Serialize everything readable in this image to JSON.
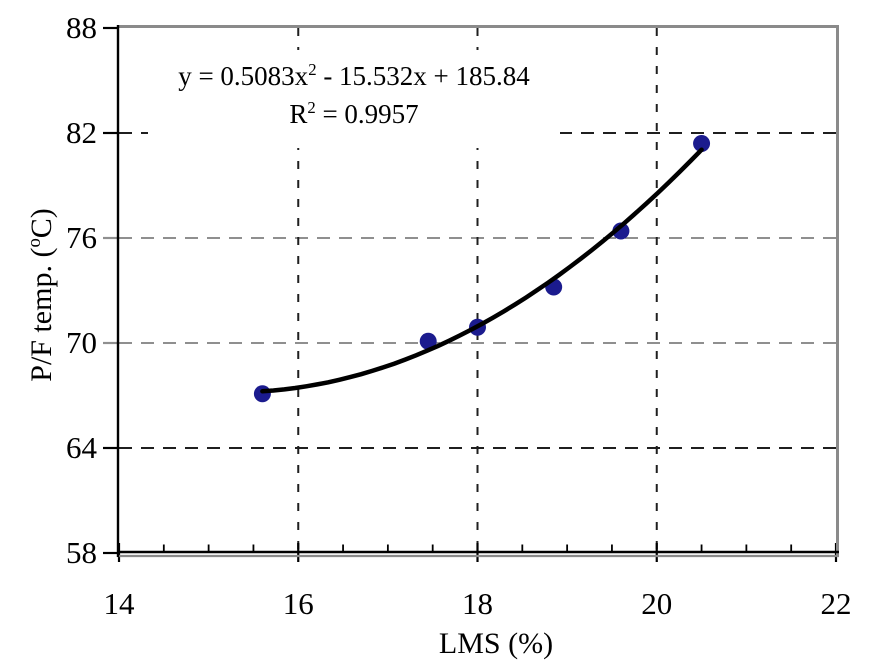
{
  "chart_data": {
    "type": "scatter",
    "title": "",
    "xlabel": "LMS (%)",
    "ylabel": {
      "prefix": "P/F temp. (",
      "degree_sup": "o",
      "suffix": "C)"
    },
    "xlim": [
      14,
      22
    ],
    "ylim": [
      58,
      88
    ],
    "x_major_ticks": [
      14,
      16,
      18,
      20,
      22
    ],
    "x_minor_tick_step": 0.5,
    "y_major_ticks": [
      88,
      82,
      76,
      70,
      64,
      58
    ],
    "legend": "none",
    "series": [
      {
        "name": "pf-temp-vs-lms",
        "marker": "filled-circle",
        "marker_color": "#1b1b8e",
        "points": [
          {
            "x": 15.6,
            "y": 67.1
          },
          {
            "x": 17.45,
            "y": 70.1
          },
          {
            "x": 18.0,
            "y": 70.9
          },
          {
            "x": 18.85,
            "y": 73.2
          },
          {
            "x": 19.6,
            "y": 76.4
          },
          {
            "x": 20.5,
            "y": 81.4
          }
        ]
      }
    ],
    "trendline": {
      "type": "polynomial",
      "order": 2,
      "a": 0.5083,
      "b": -15.532,
      "c": 185.84,
      "x_start": 15.6,
      "x_end": 20.5,
      "color": "#000000",
      "equation": {
        "pre_sup": "y = 0.5083x",
        "sup": "2",
        "post_sup": " - 15.532x + 185.84"
      },
      "r_squared": {
        "pre_sup": "R",
        "sup": "2",
        "post_sup": " = 0.9957"
      }
    },
    "gridlines": {
      "style": "dashed",
      "horizontal": [
        {
          "value": 82,
          "color": "#1f1f1f"
        },
        {
          "value": 76,
          "color": "#8f8f8f"
        },
        {
          "value": 70,
          "color": "#8f8f8f"
        },
        {
          "value": 64,
          "color": "#1f1f1f"
        }
      ],
      "vertical": [
        {
          "value": 16,
          "color": "#1f1f1f"
        },
        {
          "value": 18,
          "color": "#1f1f1f"
        },
        {
          "value": 20,
          "color": "#1f1f1f"
        }
      ]
    },
    "colors": {
      "background": "#ffffff",
      "frame_gray": "#8a8a8a",
      "axis_black": "#000000",
      "marker": "#1b1b8e",
      "trendline": "#000000"
    }
  }
}
